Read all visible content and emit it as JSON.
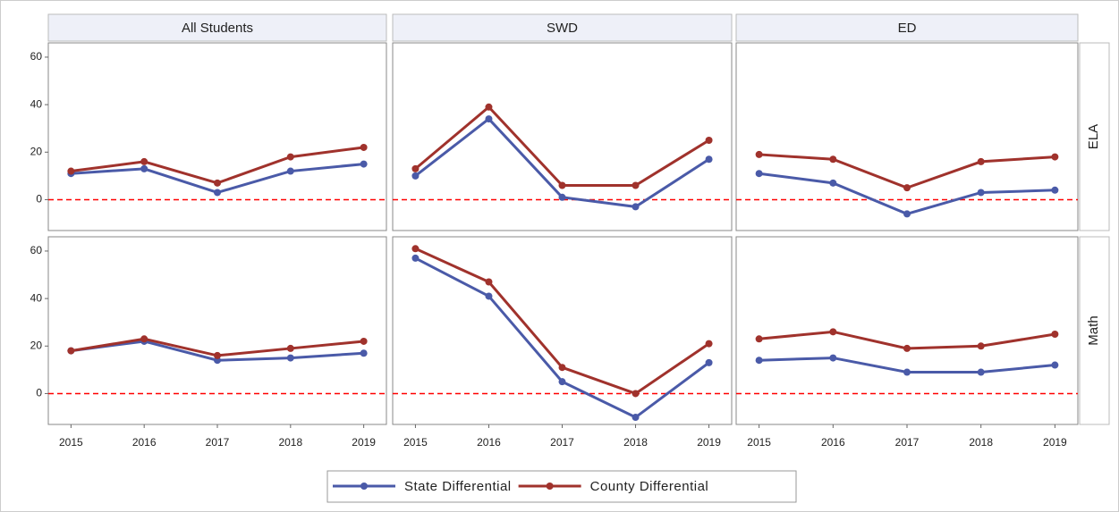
{
  "chart_data": {
    "type": "line",
    "column_titles": [
      "All Students",
      "SWD",
      "ED"
    ],
    "row_titles": [
      "ELA",
      "Math"
    ],
    "x": [
      2015,
      2016,
      2017,
      2018,
      2019
    ],
    "xlim": [
      2014.69,
      2019.31
    ],
    "xticks": [
      2015,
      2016,
      2017,
      2018,
      2019
    ],
    "ylim": [
      -13,
      66
    ],
    "yticks": [
      0,
      20,
      40,
      60
    ],
    "reference_line": {
      "value": 0,
      "color": "#ff0000"
    },
    "series": [
      {
        "name": "State Differential",
        "color": "#4a5aa8"
      },
      {
        "name": "County Differential",
        "color": "#a0322c"
      }
    ],
    "panels": [
      {
        "values": [
          [
            11,
            13,
            3,
            12,
            15
          ],
          [
            12,
            16,
            7,
            18,
            22
          ]
        ]
      },
      {
        "values": [
          [
            10,
            34,
            1,
            -3,
            17
          ],
          [
            13,
            39,
            6,
            6,
            25
          ]
        ]
      },
      {
        "values": [
          [
            11,
            7,
            -6,
            3,
            4
          ],
          [
            19,
            17,
            5,
            16,
            18
          ]
        ]
      },
      {
        "values": [
          [
            18,
            22,
            14,
            15,
            17
          ],
          [
            18,
            23,
            16,
            19,
            22
          ]
        ]
      },
      {
        "values": [
          [
            57,
            41,
            5,
            -10,
            13
          ],
          [
            61,
            47,
            11,
            0,
            21
          ]
        ]
      },
      {
        "values": [
          [
            14,
            15,
            9,
            9,
            12
          ],
          [
            23,
            26,
            19,
            20,
            25
          ]
        ]
      }
    ]
  }
}
